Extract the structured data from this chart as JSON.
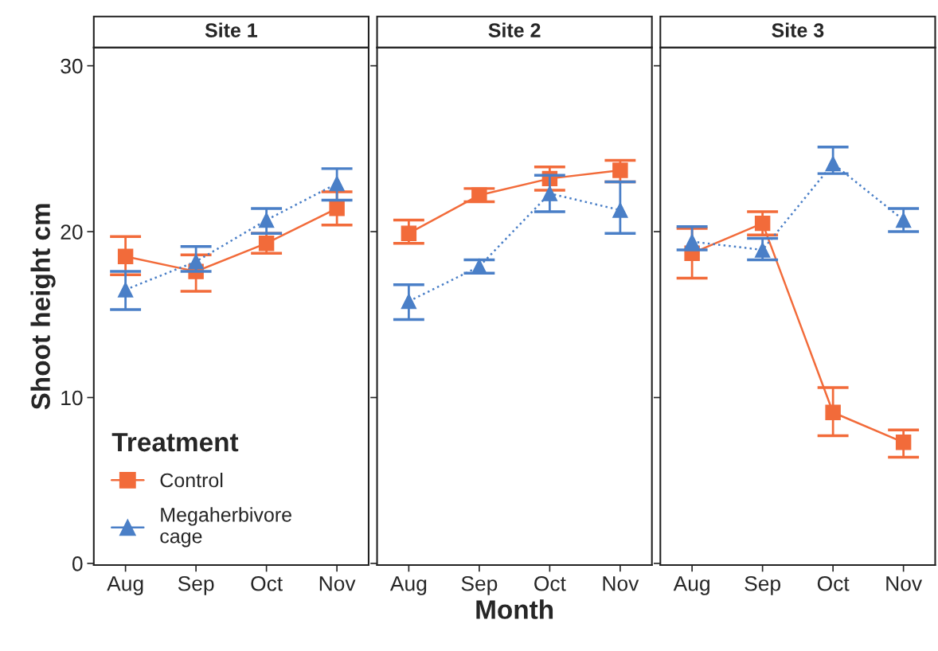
{
  "chart_data": [
    {
      "type": "line",
      "title": "Site 1",
      "ylabel": "Shoot height cm",
      "legend_title": "Treatment",
      "legend": "bottom left",
      "categories": [
        "Aug",
        "Sep",
        "Oct",
        "Nov"
      ],
      "ylim": [
        -0.1,
        31.1
      ],
      "yticks": [
        0,
        10,
        20,
        30
      ],
      "grid": false,
      "series": [
        {
          "name": "Control",
          "color": "#f26b3a",
          "marker": "square",
          "line_style": "solid",
          "values": [
            18.5,
            17.6,
            19.3,
            21.4
          ],
          "errors": [
            [
              17.4,
              19.7
            ],
            [
              16.4,
              18.6
            ],
            [
              18.7,
              19.9
            ],
            [
              20.4,
              22.4
            ]
          ]
        },
        {
          "name": "Megaherbivore\ncage",
          "color": "#4a7fc7",
          "marker": "triangle",
          "line_style": "dotted",
          "values": [
            16.5,
            18.2,
            20.7,
            22.9
          ],
          "errors": [
            [
              15.3,
              17.6
            ],
            [
              17.6,
              19.1
            ],
            [
              19.9,
              21.4
            ],
            [
              21.9,
              23.8
            ]
          ]
        }
      ]
    },
    {
      "type": "line",
      "title": "Site 2",
      "xlabel": "Month",
      "categories": [
        "Aug",
        "Sep",
        "Oct",
        "Nov"
      ],
      "ylim": [
        -0.1,
        31.1
      ],
      "yticks": [
        0,
        10,
        20,
        30
      ],
      "tick_labels": "x",
      "grid": false,
      "series": [
        {
          "color": "#f26b3a",
          "marker": "square",
          "line_style": "solid",
          "values": [
            19.9,
            22.2,
            23.2,
            23.7
          ],
          "errors": [
            [
              19.3,
              20.7
            ],
            [
              21.8,
              22.6
            ],
            [
              22.5,
              23.9
            ],
            [
              23.0,
              24.3
            ]
          ]
        },
        {
          "color": "#4a7fc7",
          "marker": "triangle",
          "line_style": "dotted",
          "values": [
            15.8,
            17.9,
            22.3,
            21.3
          ],
          "errors": [
            [
              14.7,
              16.8
            ],
            [
              17.5,
              18.3
            ],
            [
              21.2,
              23.4
            ],
            [
              19.9,
              23.0
            ]
          ]
        }
      ]
    },
    {
      "type": "line",
      "title": "Site 3",
      "categories": [
        "Aug",
        "Sep",
        "Oct",
        "Nov"
      ],
      "ylim": [
        -0.1,
        31.1
      ],
      "yticks": [
        0,
        10,
        20,
        30
      ],
      "tick_labels": "x",
      "grid": false,
      "series": [
        {
          "color": "#f26b3a",
          "marker": "square",
          "line_style": "solid",
          "values": [
            18.7,
            20.5,
            9.1,
            7.3
          ],
          "errors": [
            [
              17.2,
              20.2
            ],
            [
              19.8,
              21.2
            ],
            [
              7.7,
              10.6
            ],
            [
              6.4,
              8.05
            ]
          ]
        },
        {
          "color": "#4a7fc7",
          "marker": "triangle",
          "line_style": "dotted",
          "values": [
            19.4,
            18.9,
            24.1,
            20.7
          ],
          "errors": [
            [
              18.9,
              20.3
            ],
            [
              18.3,
              19.6
            ],
            [
              23.5,
              25.1
            ],
            [
              20.0,
              21.4
            ]
          ]
        }
      ]
    }
  ]
}
